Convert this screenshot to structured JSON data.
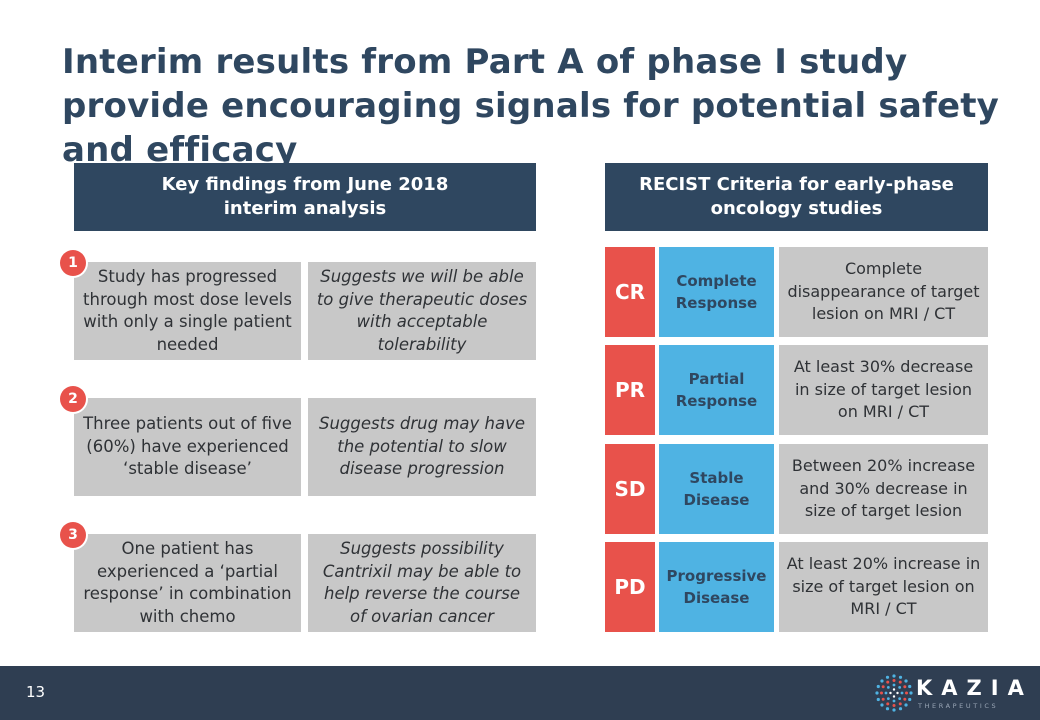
{
  "title": "Interim results from Part A of phase I study provide encouraging signals for potential safety and efficacy",
  "left": {
    "header": "Key findings from June 2018\ninterim analysis",
    "findings": [
      {
        "number": "1",
        "finding": "Study has progressed through most dose levels with only a single patient needed",
        "implication": "Suggests we will be able to give therapeutic doses with acceptable tolerability"
      },
      {
        "number": "2",
        "finding": "Three patients out of five (60%) have experienced ‘stable disease’",
        "implication": "Suggests drug may have the potential to slow disease progression"
      },
      {
        "number": "3",
        "finding": "One patient has experienced a ‘partial response’ in combination with chemo",
        "implication": "Suggests possibility Cantrixil may be able to help reverse the course of ovarian cancer"
      }
    ]
  },
  "right": {
    "header": "RECIST Criteria for early-phase\noncology studies",
    "criteria": [
      {
        "abbr": "CR",
        "term": "Complete Response",
        "description": "Complete disappearance of target lesion on MRI / CT"
      },
      {
        "abbr": "PR",
        "term": "Partial Response",
        "description": "At least 30% decrease in size of target lesion on MRI / CT"
      },
      {
        "abbr": "SD",
        "term": "Stable Disease",
        "description": "Between 20% increase and 30% decrease in size of target lesion"
      },
      {
        "abbr": "PD",
        "term": "Progressive Disease",
        "description": "At least 20% increase in size of target lesion on MRI / CT"
      }
    ]
  },
  "footer": {
    "page_number": "13",
    "logo_text": "KAZIA",
    "logo_subtext": "THERAPEUTICS"
  },
  "colors": {
    "navy": "#2f4760",
    "red": "#e8524b",
    "blue": "#4fb3e3",
    "grey": "#c8c8c8"
  }
}
